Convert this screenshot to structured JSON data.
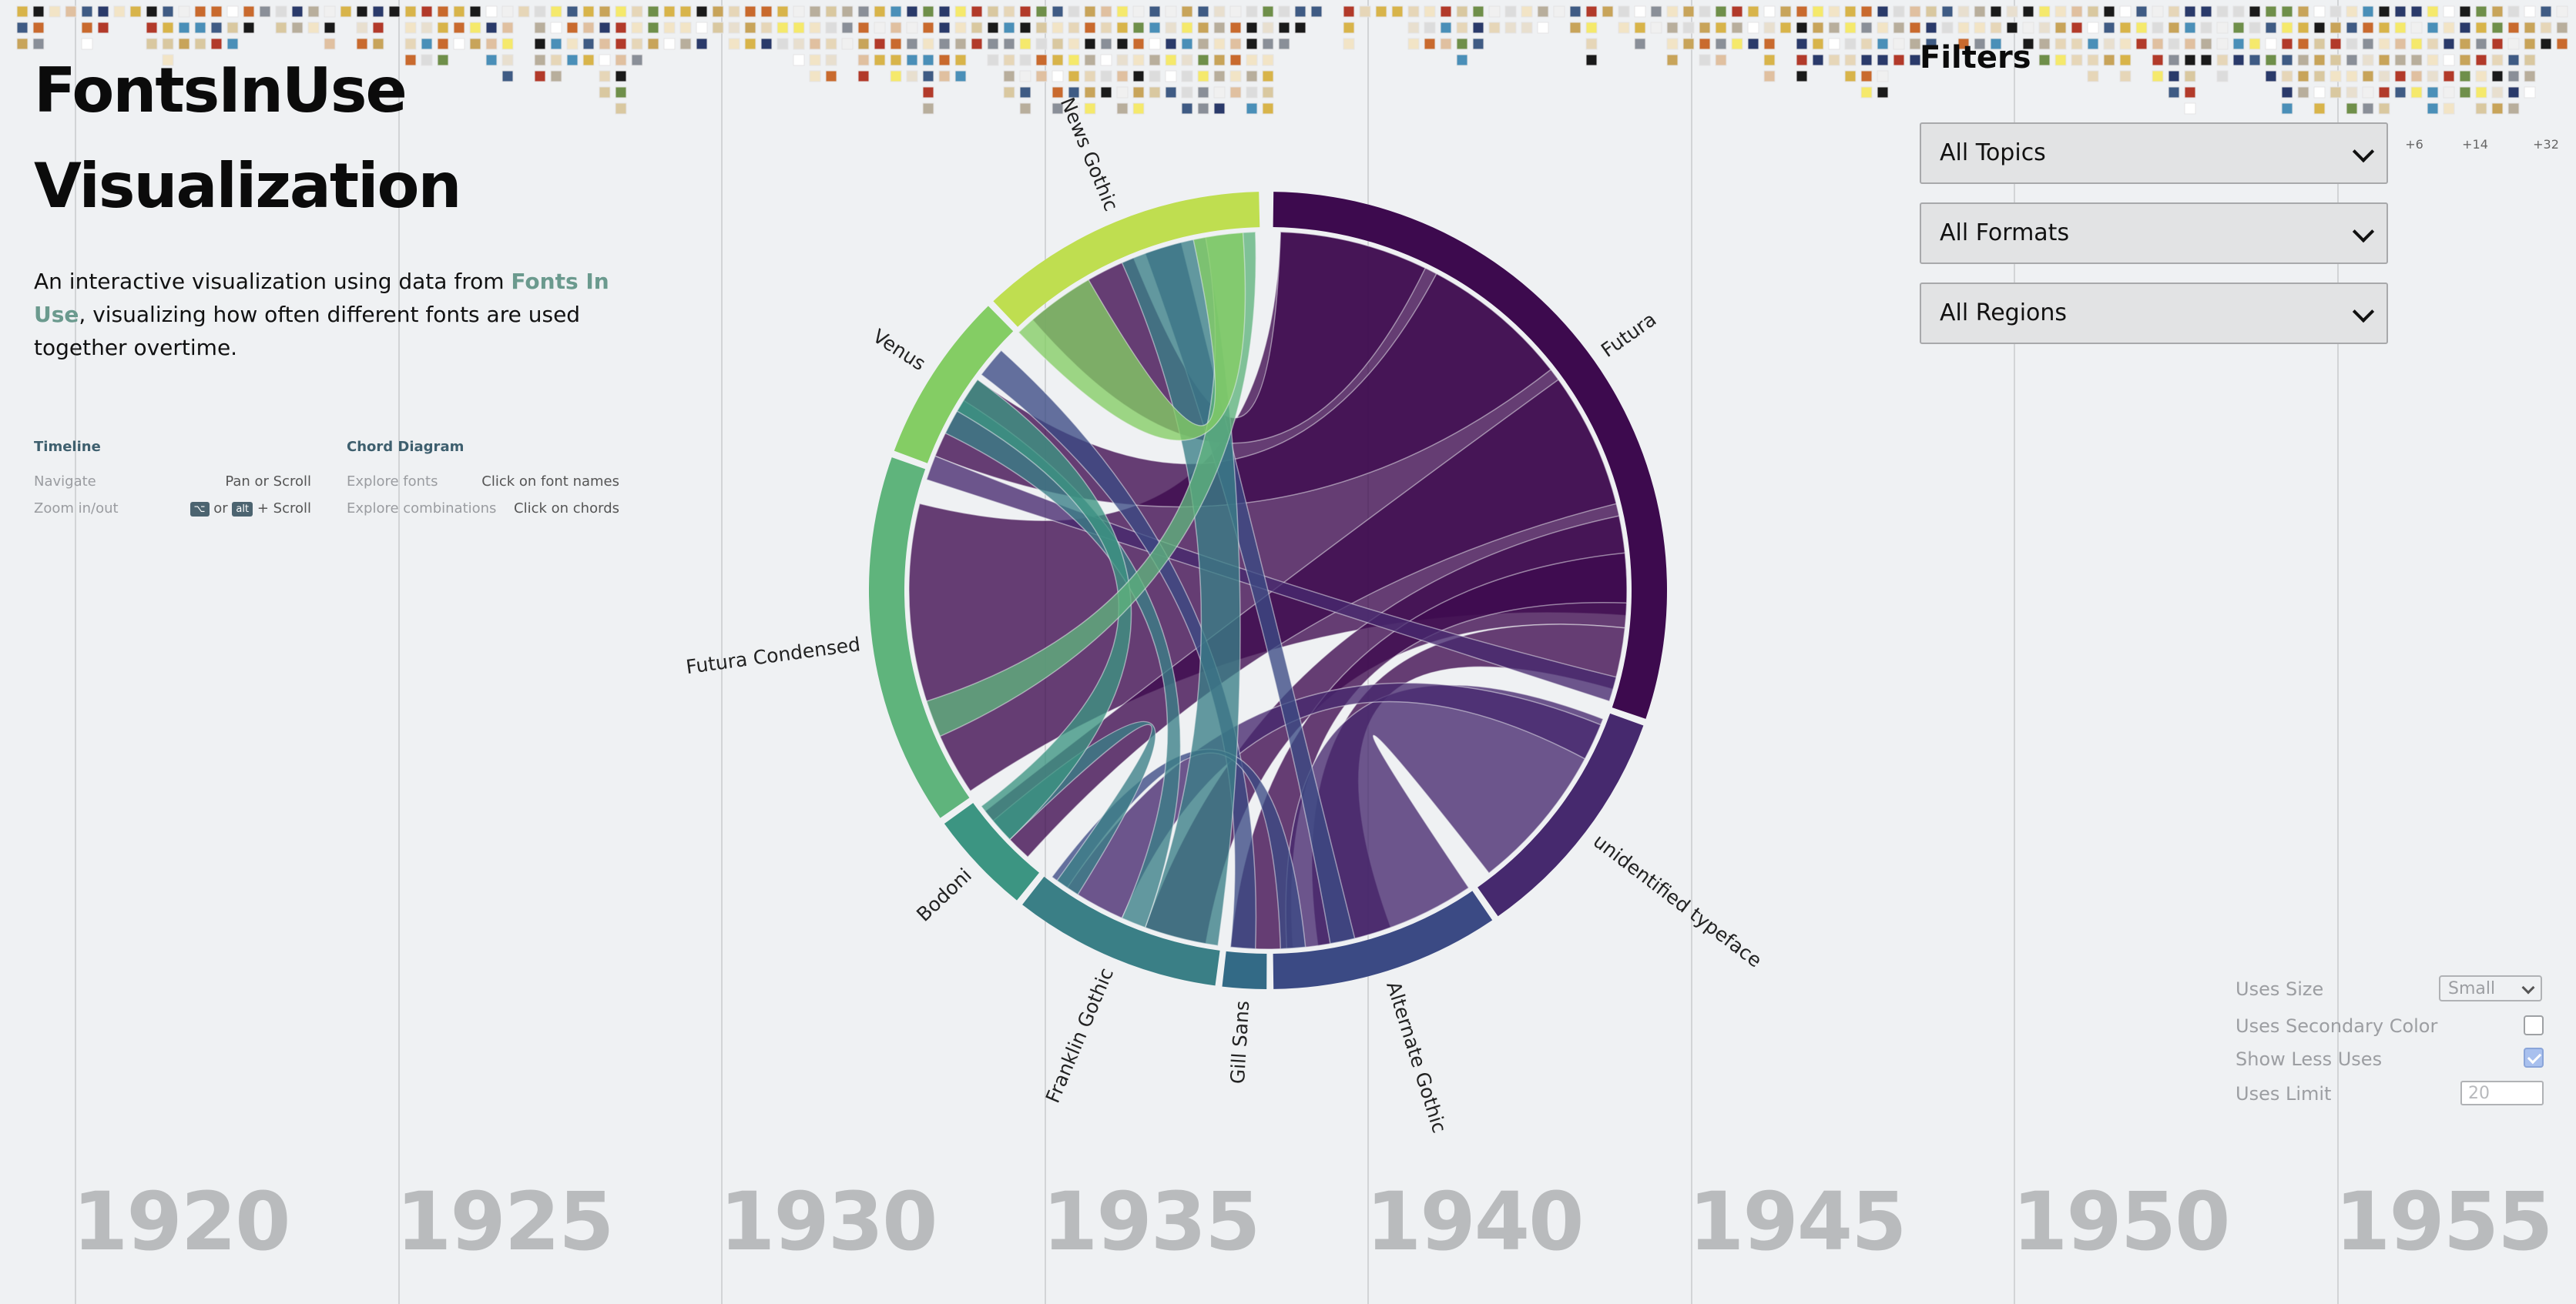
{
  "app": {
    "title_line1": "FontsInUse",
    "title_line2": "Visualization",
    "intro_before": "An interactive visualization using data from ",
    "intro_link": "Fonts In Use",
    "intro_after": ", visualizing how often different fonts are used together overtime."
  },
  "help": {
    "timeline": {
      "heading": "Timeline",
      "rows": [
        {
          "label": "Navigate",
          "value": "Pan or Scroll"
        },
        {
          "label": "Zoom in/out",
          "value_or": "or",
          "value_scroll": "+ Scroll",
          "key1": "⌥",
          "key2": "alt"
        }
      ]
    },
    "chord": {
      "heading": "Chord Diagram",
      "rows": [
        {
          "label": "Explore fonts",
          "value": "Click on font names"
        },
        {
          "label": "Explore combinations",
          "value": "Click on chords"
        }
      ]
    }
  },
  "filters": {
    "title": "Filters",
    "topics": "All Topics",
    "formats": "All Formats",
    "regions": "All Regions"
  },
  "options": {
    "uses_size_label": "Uses Size",
    "uses_size_value": "Small",
    "secondary_color_label": "Uses Secondary Color",
    "secondary_color_checked": false,
    "show_less_label": "Show Less Uses",
    "show_less_checked": true,
    "uses_limit_label": "Uses Limit",
    "uses_limit_value": "20"
  },
  "timeline": {
    "years": [
      "1920",
      "1925",
      "1930",
      "1935",
      "1940",
      "1945",
      "1950",
      "1955"
    ],
    "more_counts": [
      "+6",
      "+14",
      "+32"
    ],
    "swatch_palette": [
      "#e6d6b8",
      "#f2e4c6",
      "#c8a45a",
      "#d9c8a0",
      "#1a1a1a",
      "#ffffff",
      "#dcdcdc",
      "#b8ae9c",
      "#c96a2e",
      "#d8b44a",
      "#8a8f98",
      "#3f5b84",
      "#e8dfcf",
      "#b23a2a",
      "#f5e96c",
      "#2a3a6a",
      "#6f8f4a",
      "#e0c0a0",
      "#f0f0f0",
      "#4a8fb8"
    ]
  },
  "chord": {
    "colors": {
      "futura": "#3d0a4e",
      "unidentified": "#46296e",
      "alternate_gothic": "#3b4a84",
      "gill_sans": "#336a86",
      "franklin_gothic": "#3a7f86",
      "bodoni": "#3c9582",
      "futura_condensed": "#5fb47c",
      "venus": "#84cd64",
      "news_gothic": "#bfde50"
    },
    "fonts": [
      {
        "id": "futura",
        "name": "Futura"
      },
      {
        "id": "unidentified",
        "name": "unidentified typeface"
      },
      {
        "id": "alternate_gothic",
        "name": "Alternate Gothic"
      },
      {
        "id": "gill_sans",
        "name": "Gill Sans"
      },
      {
        "id": "franklin_gothic",
        "name": "Franklin Gothic"
      },
      {
        "id": "bodoni",
        "name": "Bodoni"
      },
      {
        "id": "futura_condensed",
        "name": "Futura Condensed"
      },
      {
        "id": "venus",
        "name": "Venus"
      },
      {
        "id": "news_gothic",
        "name": "News Gothic"
      }
    ]
  }
}
